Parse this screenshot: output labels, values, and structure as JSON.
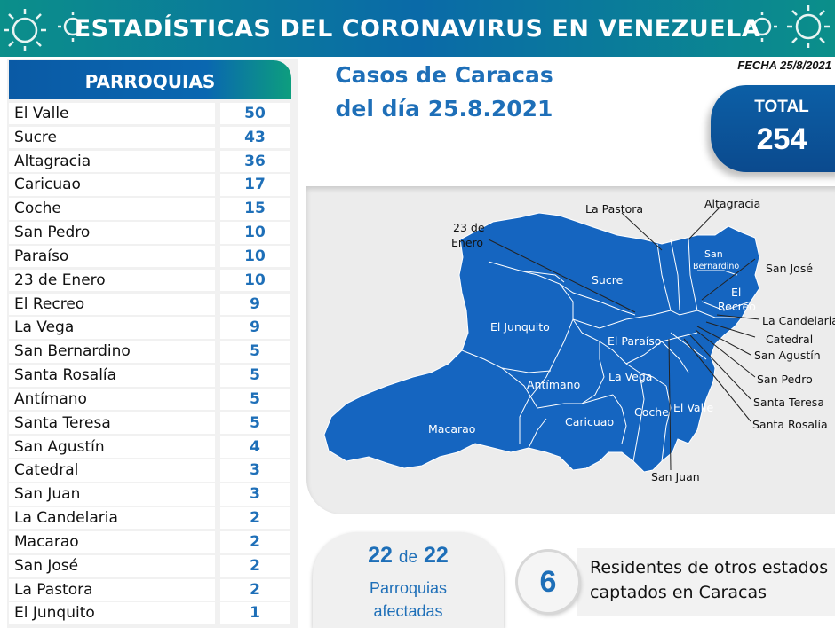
{
  "header": {
    "title": "ESTADÍSTICAS DEL CORONAVIRUS EN VENEZUELA"
  },
  "parroquias": {
    "title": "PARROQUIAS",
    "rows": [
      {
        "name": "El Valle",
        "value": "50"
      },
      {
        "name": "Sucre",
        "value": "43"
      },
      {
        "name": "Altagracia",
        "value": "36"
      },
      {
        "name": "Caricuao",
        "value": "17"
      },
      {
        "name": "Coche",
        "value": "15"
      },
      {
        "name": "San Pedro",
        "value": "10"
      },
      {
        "name": "Paraíso",
        "value": "10"
      },
      {
        "name": "23 de Enero",
        "value": "10"
      },
      {
        "name": "El Recreo",
        "value": "9"
      },
      {
        "name": "La Vega",
        "value": "9"
      },
      {
        "name": "San Bernardino",
        "value": "5"
      },
      {
        "name": "Santa Rosalía",
        "value": "5"
      },
      {
        "name": "Antímano",
        "value": "5"
      },
      {
        "name": "Santa Teresa",
        "value": "5"
      },
      {
        "name": "San Agustín",
        "value": "4"
      },
      {
        "name": "Catedral",
        "value": "3"
      },
      {
        "name": "San Juan",
        "value": "3"
      },
      {
        "name": "La Candelaria",
        "value": "2"
      },
      {
        "name": "Macarao",
        "value": "2"
      },
      {
        "name": "San José",
        "value": "2"
      },
      {
        "name": "La Pastora",
        "value": "2"
      },
      {
        "name": "El Junquito",
        "value": "1"
      }
    ]
  },
  "casos": {
    "line1": "Casos de Caracas",
    "line2": "del día 25.8.2021"
  },
  "fecha": "FECHA 25/8/2021",
  "total": {
    "label": "TOTAL",
    "value": "254"
  },
  "map": {
    "labels": {
      "la_pastora": "La Pastora",
      "altagracia": "Altagracia",
      "enero_1": "23 de",
      "enero_2": "Enero",
      "sucre": "Sucre",
      "san_bernardino_1": "San",
      "san_bernardino_2": "Bernardino",
      "san_jose": "San José",
      "el_recreo_1": "El",
      "el_recreo_2": "Recreo",
      "la_candelaria": "La Candelaria",
      "catedral": "Catedral",
      "san_agustin": "San Agustín",
      "san_pedro": "San Pedro",
      "santa_teresa": "Santa Teresa",
      "santa_rosalia": "Santa Rosalía",
      "el_junquito": "El Junquito",
      "el_paraiso": "El Paraíso",
      "antimano": "Antímano",
      "la_vega": "La Vega",
      "caricuao": "Caricuao",
      "coche": "Coche",
      "el_valle": "El Valle",
      "macarao": "Macarao",
      "san_juan": "San Juan"
    },
    "fill_color": "#1565c0"
  },
  "afectadas": {
    "num": "22",
    "de": "de",
    "total": "22",
    "line1": "Parroquias",
    "line2": "afectadas"
  },
  "residentes": {
    "count": "6",
    "line1": "Residentes de otros estados",
    "line2": "captados en Caracas"
  }
}
